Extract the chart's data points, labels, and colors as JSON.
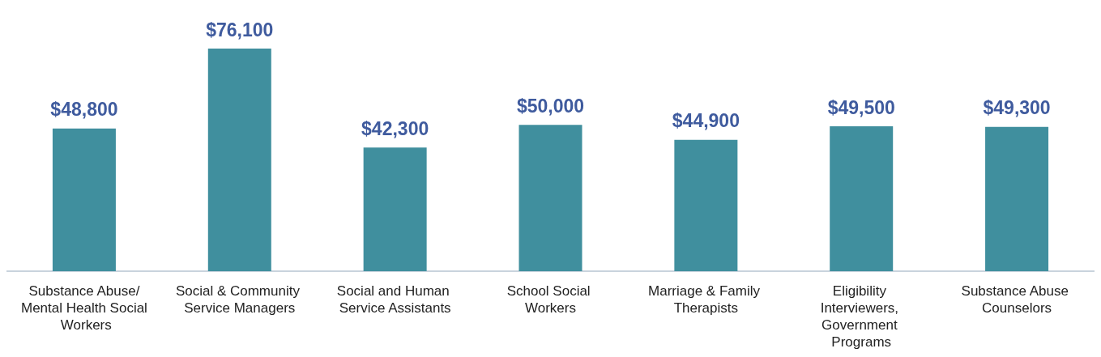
{
  "chart_data": {
    "type": "bar",
    "categories": [
      "Substance Abuse/Mental Health Social Workers",
      "Social & Community Service Managers",
      "Social and Human Service Assistants",
      "School Social Workers",
      "Marriage & Family Therapists",
      "Eligibility Interviewers, Government Programs",
      "Substance Abuse Counselors"
    ],
    "values": [
      48800,
      76100,
      42300,
      50000,
      44900,
      49500,
      49300
    ],
    "value_labels": [
      "$48,800",
      "$76,100",
      "$42,300",
      "$50,000",
      "$44,900",
      "$49,500",
      "$49,300"
    ],
    "color": "#408f9e"
  }
}
